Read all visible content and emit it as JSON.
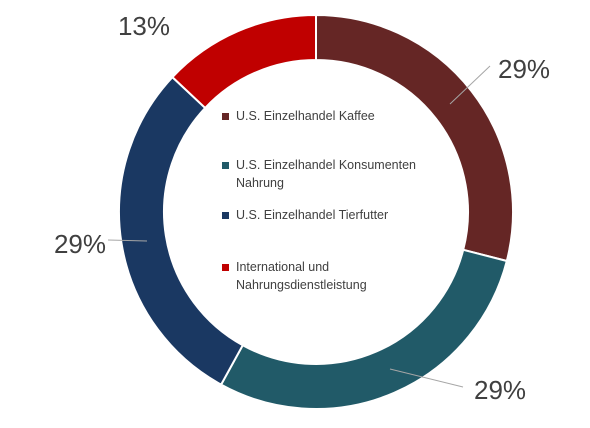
{
  "chart_data": {
    "type": "pie",
    "variant": "donut",
    "title": "",
    "categories": [
      "U.S. Einzelhandel Kaffee",
      "U.S. Einzelhandel Konsumenten Nahrung",
      "U.S. Einzelhandel Tierfutter",
      "International und Nahrungsdienstleistung"
    ],
    "values": [
      29,
      29,
      29,
      13
    ],
    "labels": [
      "29%",
      "29%",
      "29%",
      "13%"
    ],
    "colors": [
      "#652625",
      "#215a68",
      "#1a3862",
      "#c00000"
    ],
    "legend": {
      "placement": "center",
      "entries": [
        [
          "U.S. Einzelhandel Kaffee"
        ],
        [
          "U.S. Einzelhandel Konsumenten",
          "Nahrung"
        ],
        [
          "U.S. Einzelhandel Tierfutter"
        ],
        [
          "International und",
          "Nahrungsdienstleistung"
        ]
      ]
    }
  }
}
